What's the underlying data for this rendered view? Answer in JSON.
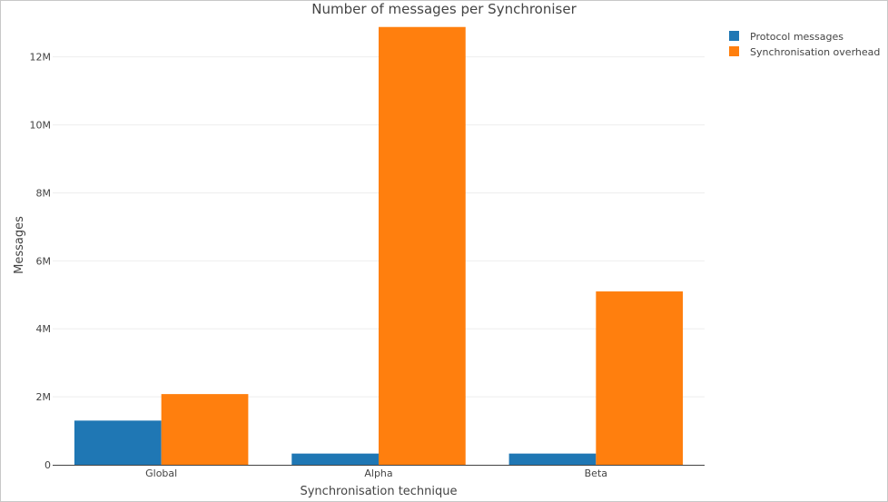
{
  "chart_data": {
    "type": "bar",
    "title": "Number of messages per Synchroniser",
    "xlabel": "Synchronisation technique",
    "ylabel": "Messages",
    "categories": [
      "Global",
      "Alpha",
      "Beta"
    ],
    "series": [
      {
        "name": "Protocol messages",
        "color": "#1f77b4",
        "values": [
          1300000,
          330000,
          330000
        ]
      },
      {
        "name": "Synchronisation overhead",
        "color": "#ff7f0e",
        "values": [
          2080000,
          12880000,
          5100000
        ]
      }
    ],
    "ylim": [
      0,
      13300000
    ],
    "yticks": [
      {
        "value": 0,
        "label": "0"
      },
      {
        "value": 2000000,
        "label": "2M"
      },
      {
        "value": 4000000,
        "label": "4M"
      },
      {
        "value": 6000000,
        "label": "6M"
      },
      {
        "value": 8000000,
        "label": "8M"
      },
      {
        "value": 10000000,
        "label": "10M"
      },
      {
        "value": 12000000,
        "label": "12M"
      }
    ],
    "grid": true,
    "legend_position": "top-right"
  }
}
